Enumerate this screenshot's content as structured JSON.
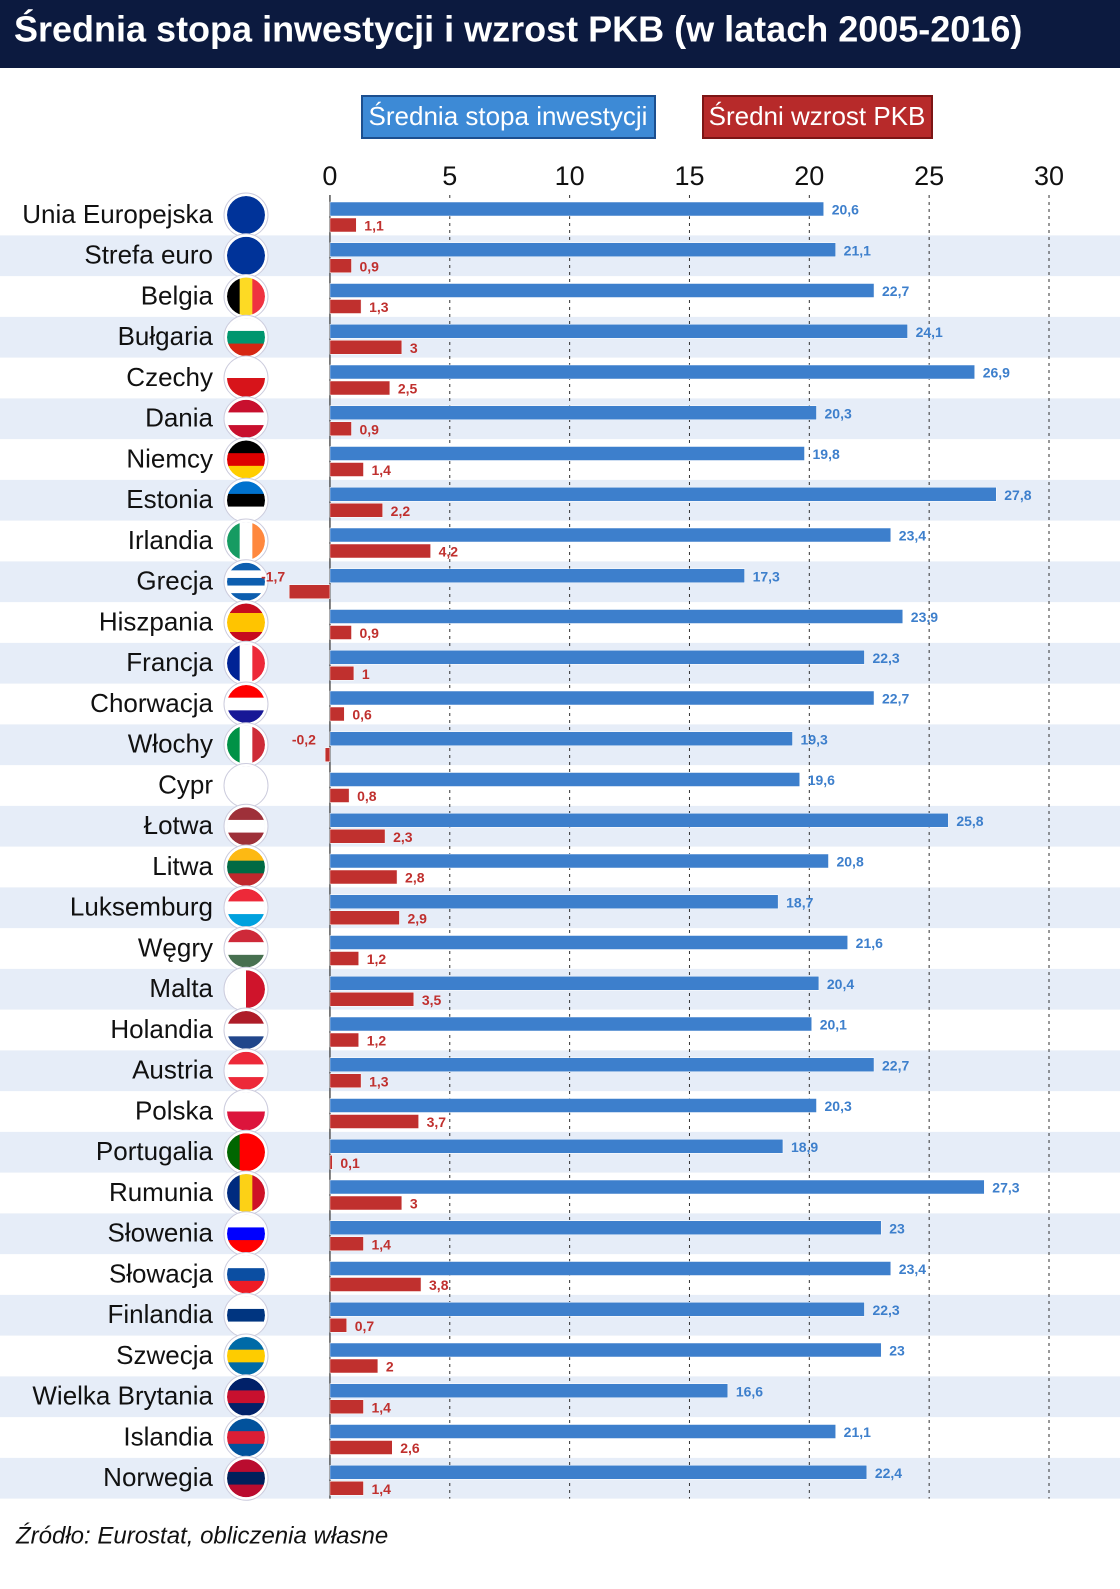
{
  "chart_data": {
    "type": "bar",
    "orientation": "horizontal",
    "title": "Średnia stopa inwestycji i wzrost PKB (w latach 2005-2016)",
    "source": "Źródło: Eurostat, obliczenia własne",
    "categories": [
      "Unia Europejska",
      "Strefa euro",
      "Belgia",
      "Bułgaria",
      "Czechy",
      "Dania",
      "Niemcy",
      "Estonia",
      "Irlandia",
      "Grecja",
      "Hiszpania",
      "Francja",
      "Chorwacja",
      "Włochy",
      "Cypr",
      "Łotwa",
      "Litwa",
      "Luksemburg",
      "Węgry",
      "Malta",
      "Holandia",
      "Austria",
      "Polska",
      "Portugalia",
      "Rumunia",
      "Słowenia",
      "Słowacja",
      "Finlandia",
      "Szwecja",
      "Wielka Brytania",
      "Islandia",
      "Norwegia"
    ],
    "series": [
      {
        "name": "Średnia stopa inwestycji",
        "color": "#3d7fcc",
        "values": [
          20.6,
          21.1,
          22.7,
          24.1,
          26.9,
          20.3,
          19.8,
          27.8,
          23.4,
          17.3,
          23.9,
          22.3,
          22.7,
          19.3,
          19.6,
          25.8,
          20.8,
          18.7,
          21.6,
          20.4,
          20.1,
          22.7,
          20.3,
          18.9,
          27.3,
          23,
          23.4,
          22.3,
          23,
          16.6,
          21.1,
          22.4
        ],
        "value_labels": [
          "20,6",
          "21,1",
          "22,7",
          "24,1",
          "26,9",
          "20,3",
          "19,8",
          "27,8",
          "23,4",
          "17,3",
          "23,9",
          "22,3",
          "22,7",
          "19,3",
          "19,6",
          "25,8",
          "20,8",
          "18,7",
          "21,6",
          "20,4",
          "20,1",
          "22,7",
          "20,3",
          "18,9",
          "27,3",
          "23",
          "23,4",
          "22,3",
          "23",
          "16,6",
          "21,1",
          "22,4"
        ]
      },
      {
        "name": "Średni wzrost PKB",
        "color": "#c0302e",
        "values": [
          1.1,
          0.9,
          1.3,
          3,
          2.5,
          0.9,
          1.4,
          2.2,
          4.2,
          -1.7,
          0.9,
          1,
          0.6,
          -0.2,
          0.8,
          2.3,
          2.8,
          2.9,
          1.2,
          3.5,
          1.2,
          1.3,
          3.7,
          0.1,
          3,
          1.4,
          3.8,
          0.7,
          2,
          1.4,
          2.6,
          1.4
        ],
        "value_labels": [
          "1,1",
          "0,9",
          "1,3",
          "3",
          "2,5",
          "0,9",
          "1,4",
          "2,2",
          "4,2",
          "-1,7",
          "0,9",
          "1",
          "0,6",
          "-0,2",
          "0,8",
          "2,3",
          "2,8",
          "2,9",
          "1,2",
          "3,5",
          "1,2",
          "1,3",
          "3,7",
          "0,1",
          "3",
          "1,4",
          "3,8",
          "0,7",
          "2",
          "1,4",
          "2,6",
          "1,4"
        ]
      }
    ],
    "xlim": [
      -2,
      30
    ],
    "xticks": [
      0,
      5,
      10,
      15,
      20,
      25,
      30
    ],
    "grid": true
  }
}
